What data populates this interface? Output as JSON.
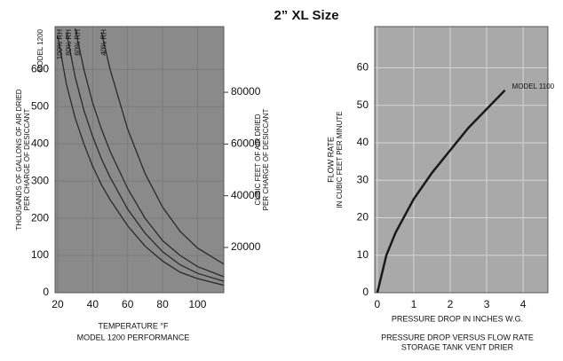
{
  "title": "2” XL Size",
  "chart_data": [
    {
      "type": "line",
      "annotation": "MODEL 1200",
      "xlabel": [
        "TEMPERATURE °F",
        "MODEL 1200 PERFORMANCE"
      ],
      "ylabel": [
        "THOUSANDS OF GALLONS OF AIR DRIED",
        "PER CHARGE OF DESICCANT"
      ],
      "y2label": [
        "CUBIC FEET OF AIR DRIED",
        "PER CHARGE OF DESICCANT"
      ],
      "x": [
        20,
        25,
        30,
        35,
        40,
        45,
        50,
        60,
        70,
        80,
        90,
        100,
        115
      ],
      "series": [
        {
          "name": "100% RH",
          "color": "#2a2a2a",
          "values": [
            690,
            560,
            470,
            400,
            340,
            290,
            250,
            180,
            125,
            85,
            55,
            38,
            20
          ]
        },
        {
          "name": "80% RH",
          "color": "#2a2a2a",
          "values": [
            null,
            700,
            580,
            490,
            420,
            360,
            310,
            225,
            160,
            110,
            75,
            52,
            31
          ]
        },
        {
          "name": "60% RH",
          "color": "#2a2a2a",
          "values": [
            null,
            null,
            710,
            600,
            510,
            440,
            380,
            280,
            200,
            140,
            100,
            70,
            43
          ]
        },
        {
          "name": "40% RH",
          "color": "#2a2a2a",
          "values": [
            null,
            null,
            null,
            null,
            null,
            700,
            600,
            440,
            320,
            230,
            165,
            120,
            77
          ]
        }
      ],
      "xlim": [
        18.5,
        115
      ],
      "xticks": [
        20,
        40,
        60,
        80,
        100
      ],
      "ylim": [
        0,
        715
      ],
      "yticks": [
        0,
        100,
        200,
        300,
        400,
        500,
        600
      ],
      "y2lim": [
        2500,
        105400
      ],
      "y2ticks": [
        20000,
        40000,
        60000,
        80000
      ],
      "grid": true,
      "background": "#8a8a8a",
      "grid_color": "#7a7a7a"
    },
    {
      "type": "line",
      "xlabel": [
        "PRESSURE DROP IN INCHES W.G.",
        "PRESSURE DROP VERSUS FLOW RATE",
        "STORAGE TANK VENT DRIER"
      ],
      "ylabel": [
        "FLOW RATE",
        "IN CUBIC FEET PER MINUTE"
      ],
      "x": [
        0,
        0.25,
        0.5,
        1,
        1.5,
        2,
        2.5,
        3,
        3.5
      ],
      "series": [
        {
          "name": "MODEL 1100",
          "color": "#1a1a1a",
          "values": [
            0,
            10,
            16,
            25,
            32,
            38,
            44,
            49,
            54
          ]
        }
      ],
      "xlim": [
        -0.07,
        4.68
      ],
      "xticks": [
        0,
        1,
        2,
        3,
        4
      ],
      "ylim": [
        0,
        71
      ],
      "yticks": [
        0,
        10,
        20,
        30,
        40,
        50,
        60
      ],
      "grid": true,
      "background": "#a9a9a9",
      "grid_color": "#d6d6d6"
    }
  ]
}
